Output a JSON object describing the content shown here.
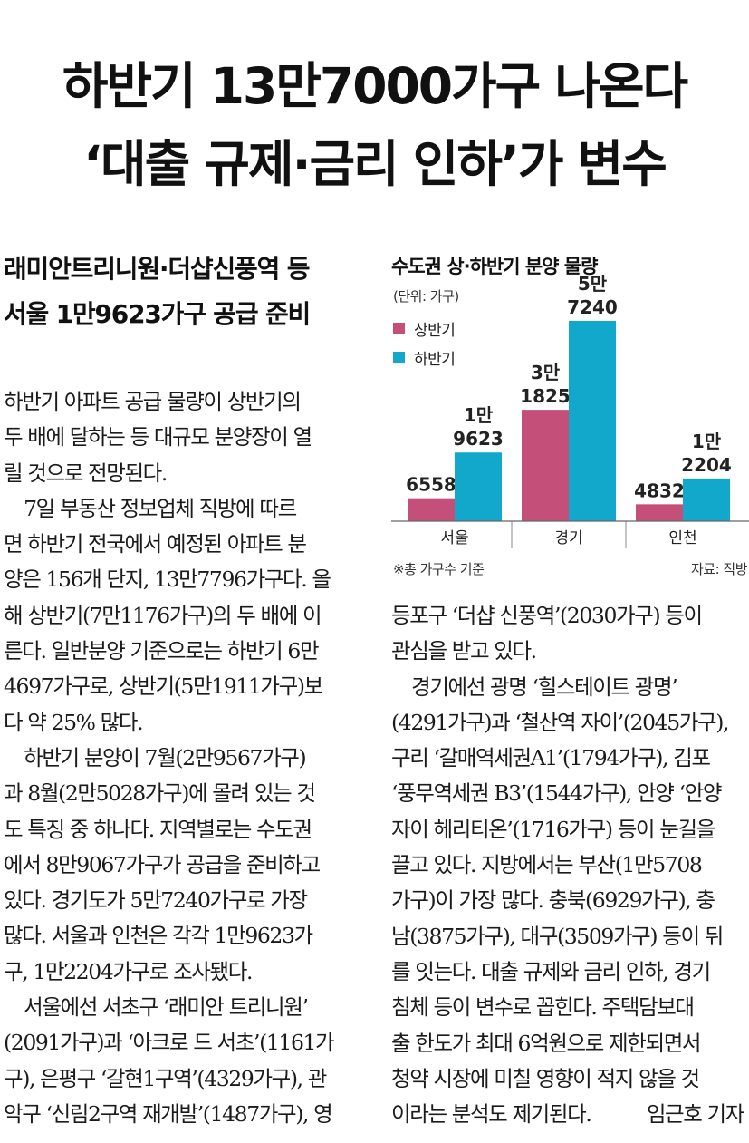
{
  "headline": {
    "line1": "하반기 13만7000가구 나온다",
    "line2": "‘대출 규제·금리 인하’가 변수"
  },
  "subhead": {
    "line1": "래미안트리니원·더샵신풍역 등",
    "line2": "서울 1만9623가구 공급 준비"
  },
  "body_left": [
    "하반기 아파트 공급 물량이 상반기의",
    "두 배에 달하는 등 대규모 분양장이 열",
    "릴 것으로 전망된다.",
    "　7일 부동산 정보업체 직방에 따르",
    "면 하반기 전국에서 예정된 아파트 분",
    "양은 156개 단지, 13만7796가구다. 올",
    "해 상반기(7만1176가구)의 두 배에 이",
    "른다. 일반분양 기준으로는 하반기 6만",
    "4697가구로, 상반기(5만1911가구)보",
    "다 약 25% 많다.",
    "　하반기 분양이 7월(2만9567가구)",
    "과 8월(2만5028가구)에 몰려 있는 것",
    "도 특징 중 하나다. 지역별로는 수도권",
    "에서 8만9067가구가 공급을 준비하고",
    "있다. 경기도가 5만7240가구로 가장",
    "많다. 서울과 인천은 각각 1만9623가",
    "구, 1만2204가구로 조사됐다.",
    "　서울에선 서초구 ‘래미안 트리니원’",
    "(2091가구)과 ‘아크로 드 서초’(1161가",
    "구), 은평구 ‘갈현1구역’(4329가구), 관",
    "악구 ‘신림2구역 재개발’(1487가구), 영"
  ],
  "body_right": [
    "등포구 ‘더샵 신풍역’(2030가구) 등이",
    "관심을 받고 있다.",
    "　경기에선 광명 ‘힐스테이트 광명’",
    "(4291가구)과 ‘철산역 자이’(2045가구),",
    "구리 ‘갈매역세권A1’(1794가구), 김포",
    "‘풍무역세권 B3’(1544가구), 안양 ‘안양",
    "자이 헤리티온’(1716가구) 등이 눈길을",
    "끌고 있다. 지방에서는 부산(1만5708",
    "가구)이 가장 많다. 충북(6929가구), 충",
    "남(3875가구), 대구(3509가구) 등이 뒤",
    "를 잇는다. 대출 규제와 금리 인하, 경기",
    "침체 등이 변수로 꼽힌다. 주택담보대",
    "출 한도가 최대 6억원으로 제한되면서",
    "청약 시장에 미칠 영향이 적지 않을 것",
    "이라는 분석도 제기된다."
  ],
  "byline": "임근호 기자",
  "chart_data": {
    "type": "bar",
    "title": "수도권 상·하반기 분양 물량",
    "unit": "(단위: 가구)",
    "categories": [
      "서울",
      "경기",
      "인천"
    ],
    "series": [
      {
        "name": "상반기",
        "values": [
          6558,
          31825,
          4832
        ],
        "labels": [
          "6558",
          "3만\n1825",
          "4832"
        ],
        "color": "#c4507a"
      },
      {
        "name": "하반기",
        "values": [
          19623,
          57240,
          12204
        ],
        "labels": [
          "1만\n9623",
          "5만\n7240",
          "1만\n2204"
        ],
        "color": "#12a8cc"
      }
    ],
    "ylim": [
      0,
      57240
    ],
    "note": "※총 가구수 기준",
    "source": "자료: 직방",
    "grid": false,
    "legend": "top-left"
  }
}
